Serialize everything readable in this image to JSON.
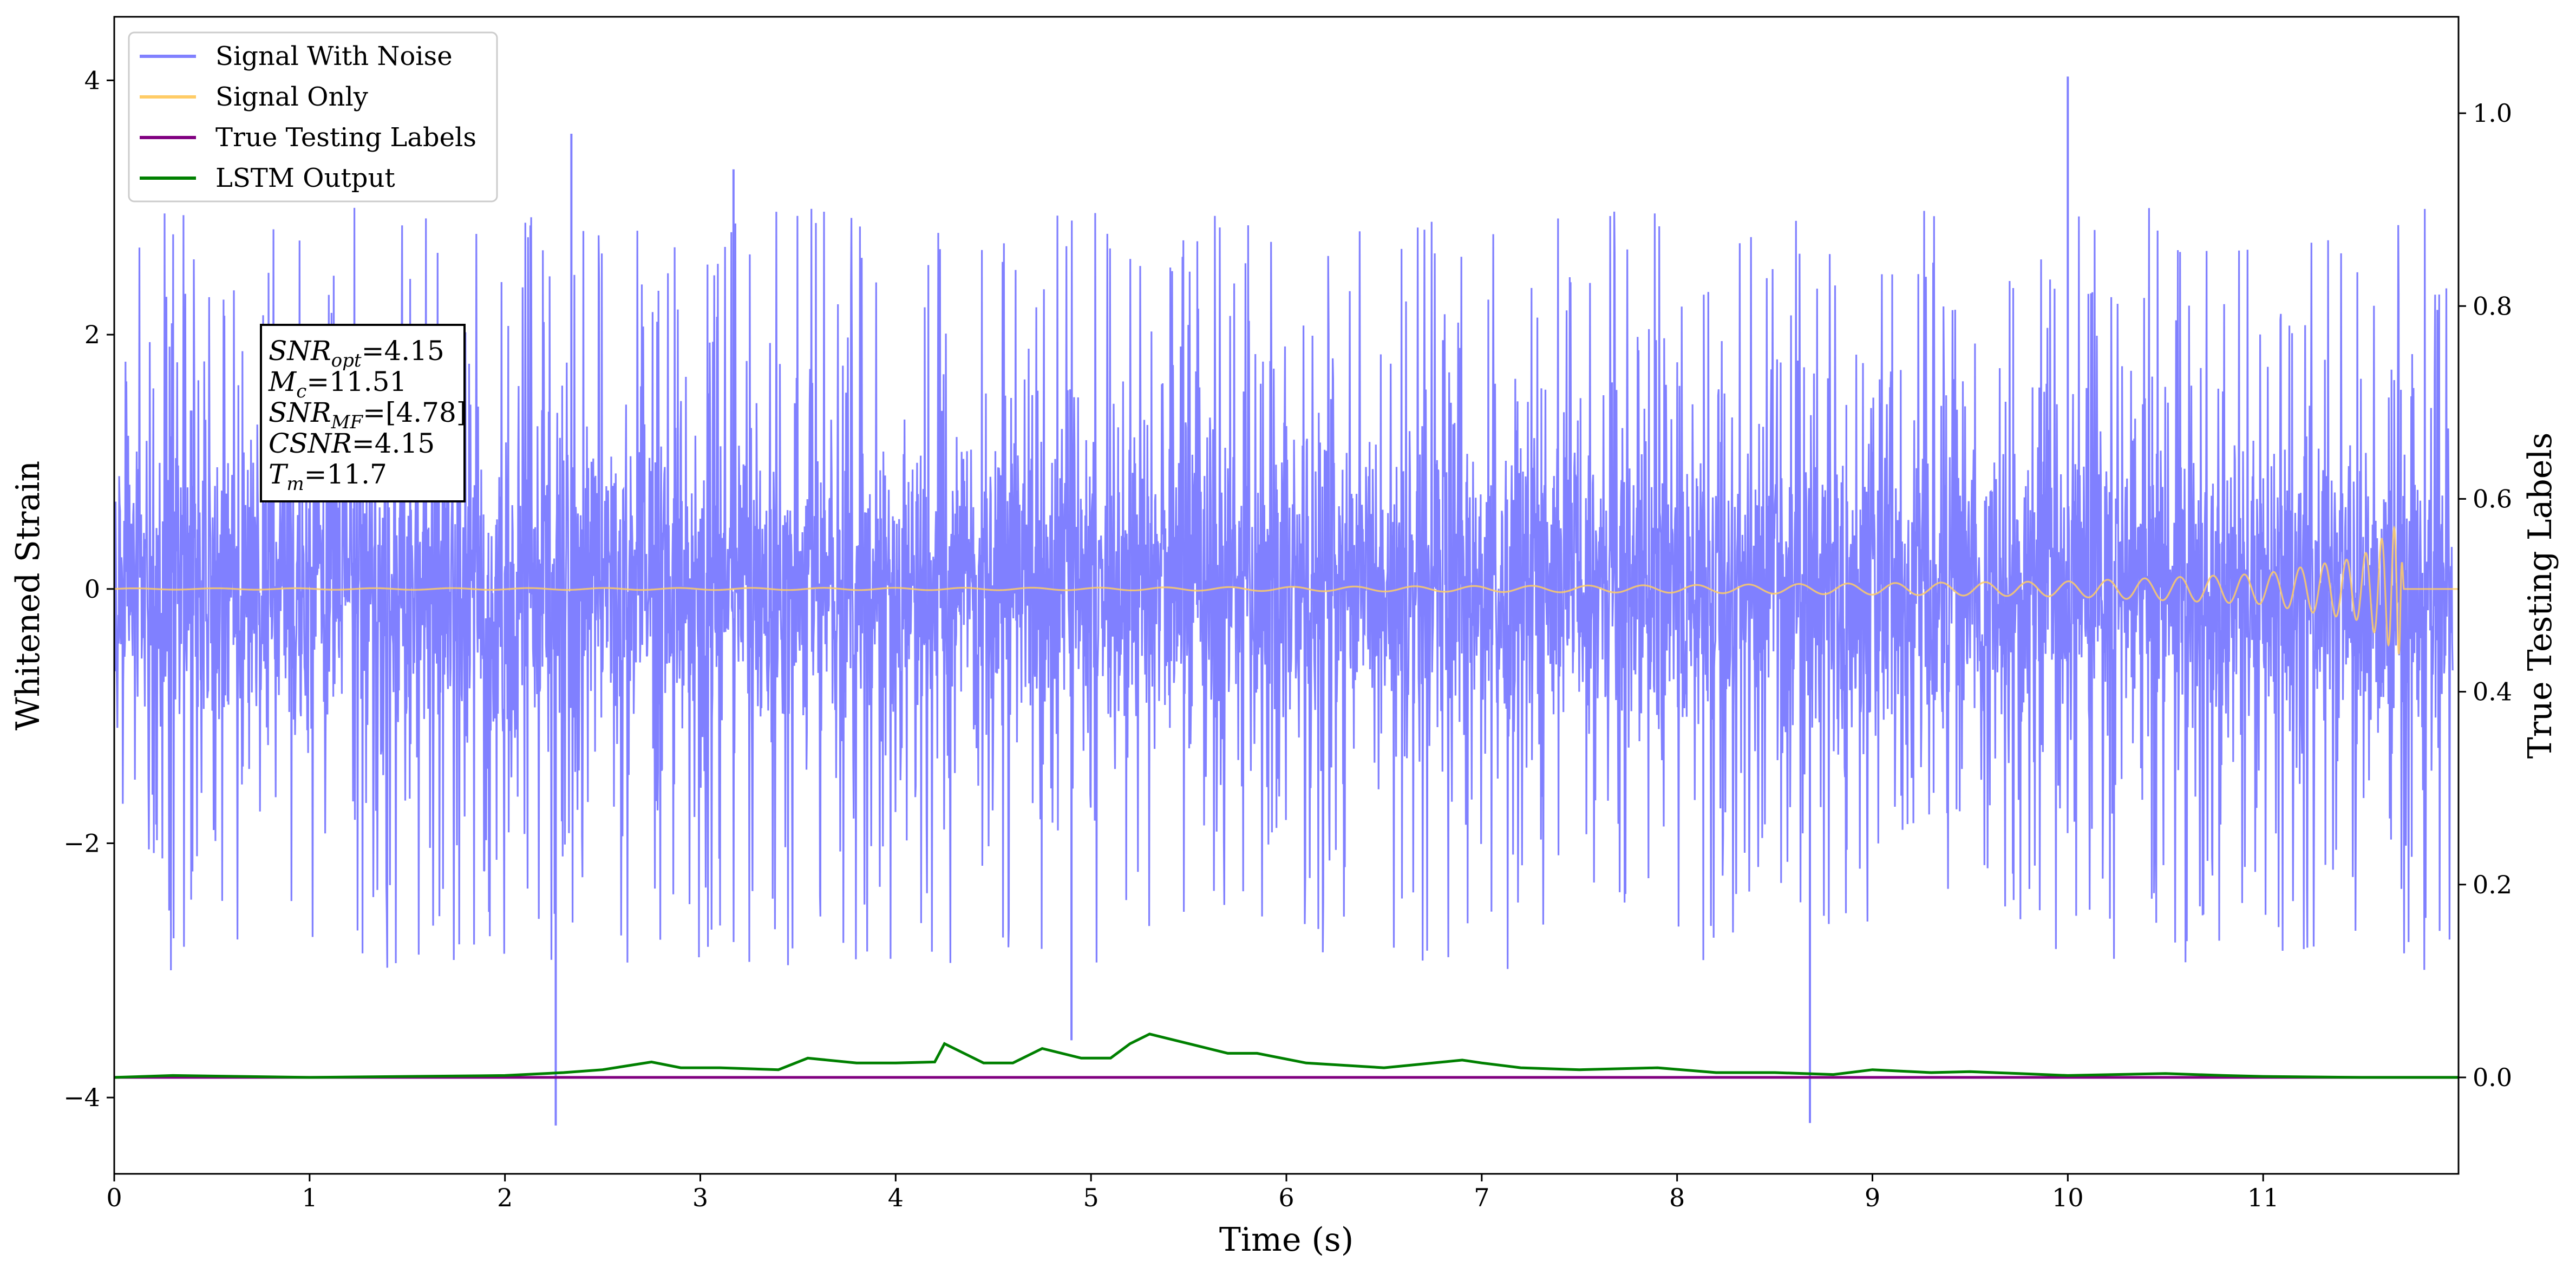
{
  "chart_data": {
    "type": "line",
    "xlabel": "Time (s)",
    "ylabel": "Whitened Strain",
    "ylabel_right": "True Testing Labels",
    "xlim": [
      0,
      12.0
    ],
    "ylim": [
      -4.6,
      4.5
    ],
    "ylim_right": [
      -0.1,
      1.1
    ],
    "x_ticks": [
      "0",
      "1",
      "2",
      "3",
      "4",
      "5",
      "6",
      "7",
      "8",
      "9",
      "10",
      "11"
    ],
    "y_ticks": [
      "4",
      "2",
      "0",
      "−2",
      "−4"
    ],
    "y_ticks_right": [
      "1.0",
      "0.8",
      "0.6",
      "0.4",
      "0.2",
      "0.0"
    ],
    "grid": false,
    "legend_position": "top-left",
    "series": [
      {
        "name": "Signal With Noise",
        "axis": "left",
        "color": "#8080ff",
        "description_values": {
          "typical_envelope": 1.4,
          "extreme_points": [
            {
              "x": 2.26,
              "y": -4.22
            },
            {
              "x": 2.34,
              "y": 3.58
            },
            {
              "x": 3.17,
              "y": 3.3
            },
            {
              "x": 4.9,
              "y": -3.55
            },
            {
              "x": 8.68,
              "y": -4.2
            },
            {
              "x": 10.0,
              "y": 4.03
            }
          ]
        }
      },
      {
        "name": "Signal Only",
        "axis": "left",
        "color": "#ffcc66",
        "x": [
          0,
          5,
          8,
          10,
          11,
          11.5,
          11.7,
          11.72,
          12.0
        ],
        "amplitude": [
          0.005,
          0.01,
          0.03,
          0.06,
          0.12,
          0.25,
          0.52,
          0,
          0
        ]
      },
      {
        "name": "True Testing Labels",
        "axis": "right",
        "color": "#800080",
        "x": [
          0,
          12.0
        ],
        "values": [
          0.0,
          0.0
        ]
      },
      {
        "name": "LSTM Output",
        "axis": "right",
        "color": "#008000",
        "x": [
          0,
          0.3,
          1.0,
          2.0,
          2.3,
          2.5,
          2.75,
          2.9,
          3.1,
          3.4,
          3.55,
          3.8,
          4.0,
          4.2,
          4.25,
          4.45,
          4.6,
          4.75,
          4.95,
          5.1,
          5.2,
          5.3,
          5.5,
          5.7,
          5.85,
          6.1,
          6.5,
          6.9,
          7.0,
          7.2,
          7.5,
          7.9,
          8.2,
          8.5,
          8.8,
          9.0,
          9.3,
          9.5,
          9.75,
          10.0,
          10.5,
          10.8,
          11.0,
          11.5,
          12.0
        ],
        "values": [
          0.0,
          0.002,
          0.0,
          0.002,
          0.005,
          0.008,
          0.016,
          0.01,
          0.01,
          0.008,
          0.02,
          0.015,
          0.015,
          0.016,
          0.035,
          0.015,
          0.015,
          0.03,
          0.02,
          0.02,
          0.035,
          0.045,
          0.035,
          0.025,
          0.025,
          0.015,
          0.01,
          0.018,
          0.015,
          0.01,
          0.008,
          0.01,
          0.005,
          0.005,
          0.003,
          0.008,
          0.005,
          0.006,
          0.004,
          0.002,
          0.004,
          0.002,
          0.001,
          0.0,
          0.0
        ]
      }
    ],
    "annotation": {
      "lines": [
        {
          "main": "SNR",
          "sub": "opt",
          "rest": "=4.15"
        },
        {
          "main": "M",
          "sub": "c",
          "rest": "=11.51"
        },
        {
          "main": "SNR",
          "sub": "MF",
          "rest": "=[4.78]"
        },
        {
          "main": "CSNR",
          "sub": "",
          "rest": "=4.15"
        },
        {
          "main": "T",
          "sub": "m",
          "rest": "=11.7"
        }
      ]
    }
  }
}
